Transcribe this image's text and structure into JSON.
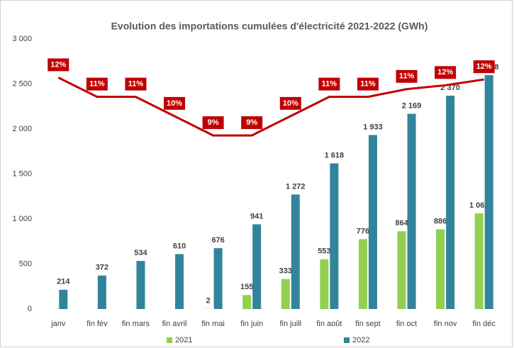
{
  "chart_data": {
    "type": "bar",
    "title": "Evolution des importations cumulées d'électricité 2021-2022 (GWh)",
    "categories": [
      "janv",
      "fin fév",
      "fin mars",
      "fin avril",
      "fin mai",
      "fin juin",
      "fin juill",
      "fin août",
      "fin sept",
      "fin oct",
      "fin nov",
      "fin déc"
    ],
    "series": [
      {
        "name": "2021",
        "color": "#92d050",
        "values": [
          null,
          null,
          null,
          null,
          2,
          155,
          333,
          553,
          776,
          864,
          886,
          1062
        ],
        "value_labels": [
          null,
          null,
          null,
          null,
          "2",
          "155",
          "333",
          "553",
          "776",
          "864",
          "886",
          "1 062"
        ]
      },
      {
        "name": "2022",
        "color": "#31849b",
        "values": [
          214,
          372,
          534,
          610,
          676,
          941,
          1272,
          1618,
          1933,
          2169,
          2370,
          2598
        ],
        "value_labels": [
          "214",
          "372",
          "534",
          "610",
          "676",
          "941",
          "1 272",
          "1 618",
          "1 933",
          "2 169",
          "2 370",
          "2 598"
        ]
      },
      {
        "type": "line",
        "axis": "y2",
        "color": "#c00000",
        "values": [
          12,
          11,
          11,
          10,
          9,
          9,
          10,
          11,
          11,
          11.4,
          11.6,
          11.9
        ],
        "value_labels": [
          "12%",
          "11%",
          "11%",
          "10%",
          "9%",
          "9%",
          "10%",
          "11%",
          "11%",
          "11%",
          "12%",
          "12%"
        ]
      }
    ],
    "ylim": [
      0,
      3000
    ],
    "yticks": [
      0,
      500,
      {
        "value": 1000,
        "label": "1 000"
      },
      {
        "value": 1500,
        "label": "1 500"
      },
      {
        "value": 2000,
        "label": "2 000"
      },
      {
        "value": 2500,
        "label": "2 500"
      },
      {
        "value": 3000,
        "label": "3 000"
      }
    ],
    "y2lim": [
      0,
      14
    ],
    "legend": "bottom"
  }
}
